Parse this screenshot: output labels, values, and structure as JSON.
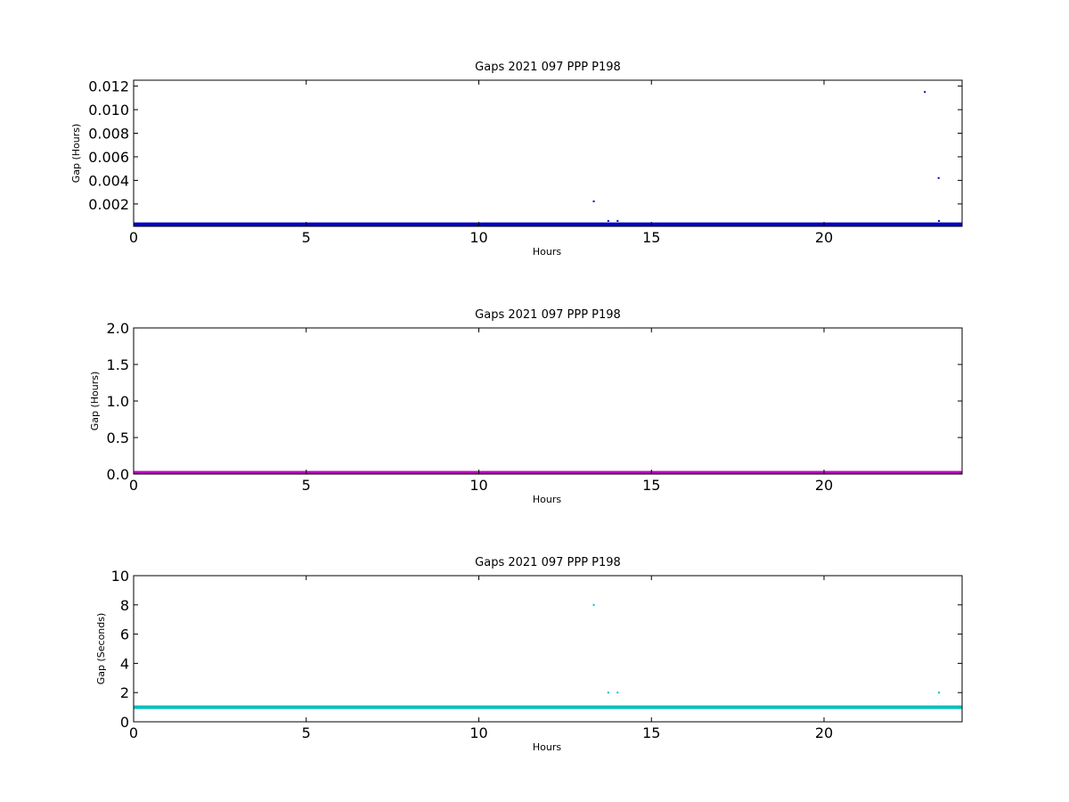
{
  "chart_data": [
    {
      "type": "scatter",
      "title": "Gaps 2021 097 PPP  P198",
      "xlabel": "Hours",
      "ylabel": "Gap (Hours)",
      "xlim": [
        0,
        24
      ],
      "ylim": [
        0.0001,
        0.0125
      ],
      "xticks": [
        0,
        5,
        10,
        15,
        20
      ],
      "yticks": [
        0.002,
        0.004,
        0.006,
        0.008,
        0.01,
        0.012
      ],
      "ytick_labels": [
        "0.002",
        "0.004",
        "0.006",
        "0.008",
        "0.010",
        "0.012"
      ],
      "grid": false,
      "series": [
        {
          "color": "#0000bf",
          "baseline": {
            "y": 0.000278,
            "x_range": [
              0,
              24
            ]
          },
          "points": [
            {
              "x": 13.33,
              "y": 0.00222
            },
            {
              "x": 13.75,
              "y": 0.00056
            },
            {
              "x": 14.02,
              "y": 0.00056
            },
            {
              "x": 22.92,
              "y": 0.0115
            },
            {
              "x": 23.32,
              "y": 0.0042
            },
            {
              "x": 23.33,
              "y": 0.00056
            }
          ]
        }
      ]
    },
    {
      "type": "scatter",
      "title": "Gaps 2021 097 PPP  P198",
      "xlabel": "Hours",
      "ylabel": "Gap (Hours)",
      "xlim": [
        0,
        24
      ],
      "ylim": [
        0,
        2
      ],
      "xticks": [
        0,
        5,
        10,
        15,
        20
      ],
      "yticks": [
        0,
        0.5,
        1,
        1.5,
        2
      ],
      "ytick_labels": [
        "0.0",
        "0.5",
        "1.0",
        "1.5",
        "2.0"
      ],
      "grid": false,
      "series": [
        {
          "color": "#bf00bf",
          "baseline": {
            "y": 0.0003,
            "x_range": [
              0,
              24
            ]
          },
          "points": []
        }
      ]
    },
    {
      "type": "scatter",
      "title": "Gaps 2021 097 PPP  P198",
      "xlabel": "Hours",
      "ylabel": "Gap (Seconds)",
      "xlim": [
        0,
        24
      ],
      "ylim": [
        0,
        10
      ],
      "xticks": [
        0,
        5,
        10,
        15,
        20
      ],
      "yticks": [
        0,
        2,
        4,
        6,
        8,
        10
      ],
      "ytick_labels": [
        "0",
        "2",
        "4",
        "6",
        "8",
        "10"
      ],
      "grid": false,
      "series": [
        {
          "color": "#00bfbf",
          "baseline": {
            "y": 1,
            "x_range": [
              0,
              24
            ]
          },
          "points": [
            {
              "x": 13.33,
              "y": 8
            },
            {
              "x": 13.75,
              "y": 2
            },
            {
              "x": 14.02,
              "y": 2
            },
            {
              "x": 23.33,
              "y": 2
            }
          ]
        }
      ]
    }
  ]
}
